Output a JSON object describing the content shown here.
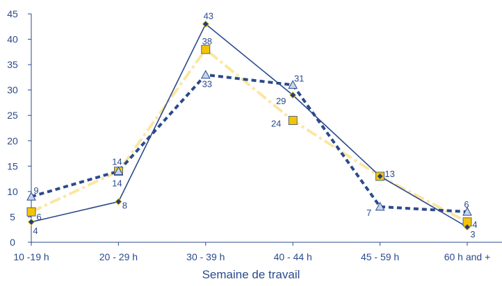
{
  "chart_data": {
    "type": "line",
    "categories": [
      "10 -19 h",
      "20 - 29 h",
      "30 - 39 h",
      "40 - 44 h",
      "45 - 59 h",
      "60 h and +"
    ],
    "xlabel": "Semaine de travail",
    "ylabel": "",
    "ylim": [
      0,
      45
    ],
    "yticks": [
      0,
      5,
      10,
      15,
      20,
      25,
      30,
      35,
      40,
      45
    ],
    "grid": false,
    "series": [
      {
        "values": [
          4,
          8,
          43,
          29,
          13,
          3
        ],
        "color": "#2a4a8c",
        "marker": "diamond",
        "line": "solid"
      },
      {
        "values": [
          6,
          14,
          38,
          24,
          13,
          4
        ],
        "color": "#fbe6a2",
        "marker": "square",
        "marker_fill": "#f5c400",
        "line": "dashed"
      },
      {
        "values": [
          9,
          14,
          33,
          31,
          7,
          6
        ],
        "color": "#2a4a8c",
        "marker": "triangle",
        "marker_fill": "#c8d3ee",
        "line": "dotted"
      }
    ],
    "data_labels": [
      {
        "series": 0,
        "index": 0,
        "text": "4"
      },
      {
        "series": 0,
        "index": 1,
        "text": "8"
      },
      {
        "series": 0,
        "index": 2,
        "text": "43"
      },
      {
        "series": 0,
        "index": 3,
        "text": "29"
      },
      {
        "series": 0,
        "index": 4,
        "text": "13"
      },
      {
        "series": 0,
        "index": 5,
        "text": "3"
      },
      {
        "series": 1,
        "index": 0,
        "text": "6"
      },
      {
        "series": 1,
        "index": 1,
        "text": "14"
      },
      {
        "series": 1,
        "index": 2,
        "text": "38"
      },
      {
        "series": 1,
        "index": 3,
        "text": "24"
      },
      {
        "series": 1,
        "index": 5,
        "text": "4"
      },
      {
        "series": 2,
        "index": 0,
        "text": "9"
      },
      {
        "series": 2,
        "index": 1,
        "text": "14"
      },
      {
        "series": 2,
        "index": 2,
        "text": "33"
      },
      {
        "series": 2,
        "index": 3,
        "text": "31"
      },
      {
        "series": 2,
        "index": 4,
        "text": "7"
      },
      {
        "series": 2,
        "index": 5,
        "text": "6"
      }
    ]
  }
}
